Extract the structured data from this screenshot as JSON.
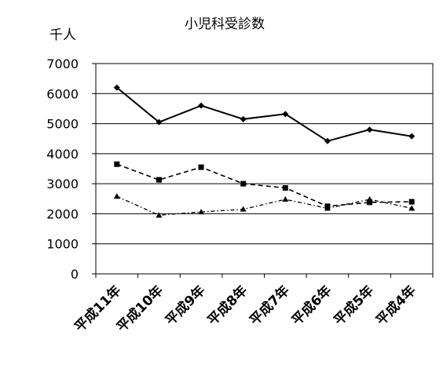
{
  "chart_data": {
    "type": "line",
    "title": "小児科受診数",
    "ylabel": "千人",
    "xlabel": "",
    "ylim": [
      0,
      7000
    ],
    "yticks": [
      0,
      1000,
      2000,
      3000,
      4000,
      5000,
      6000,
      7000
    ],
    "grid": true,
    "legend": "none",
    "categories": [
      "平成11年",
      "平成10年",
      "平成9年",
      "平成8年",
      "平成7年",
      "平成6年",
      "平成5年",
      "平成4年"
    ],
    "series": [
      {
        "values": [
          6200,
          5050,
          5600,
          5150,
          5320,
          4420,
          4800,
          4580
        ],
        "style": "solid",
        "marker": "diamond",
        "color": "#000000"
      },
      {
        "values": [
          3650,
          3130,
          3550,
          3000,
          2860,
          2250,
          2380,
          2400
        ],
        "style": "dashed",
        "marker": "square",
        "color": "#000000"
      },
      {
        "values": [
          2580,
          1950,
          2060,
          2150,
          2480,
          2180,
          2480,
          2180
        ],
        "style": "dashdot",
        "marker": "triangle",
        "color": "#000000"
      }
    ]
  }
}
